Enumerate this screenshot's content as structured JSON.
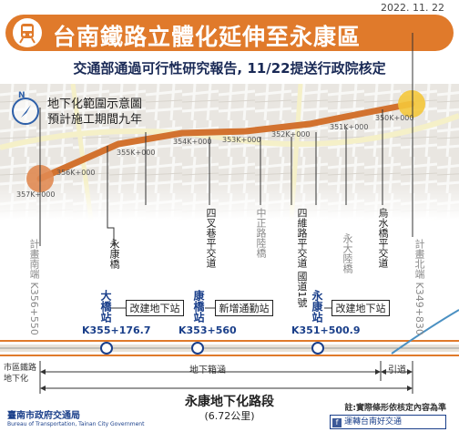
{
  "date": "2022. 11. 22",
  "header": {
    "title": "台南鐵路立體化延伸至永康區",
    "subtitle": "交通部通過可行性研究報告, 11/22提送行政院核定"
  },
  "map": {
    "legend_line1": "地下化範圍示意圖",
    "legend_line2": "預計施工期間九年",
    "map_labels": [
      "357K+000",
      "356K+000",
      "355K+000",
      "354K+000",
      "353K+000",
      "352K+000",
      "351K+000",
      "350K+000"
    ]
  },
  "points": {
    "left_end": "計畫南端 K356+550",
    "right_end": "計畫北端 K349+830",
    "yongkang_bridge": "永康橋",
    "sichagong": "四叉巷平交道",
    "zhongzheng": "中正路陸橋",
    "siwei": "四維路平交道 國道1號",
    "yongda": "永大陸橋",
    "wushuiqiao": "烏水橋平交道"
  },
  "stations": [
    {
      "name": "大橋站",
      "km": "K355+176.7",
      "action": "改建地下站"
    },
    {
      "name": "康橋站",
      "km": "K353+560",
      "action": "新增通勤站"
    },
    {
      "name": "永康站",
      "km": "K351+500.9",
      "action": "改建地下站"
    }
  ],
  "bottom": {
    "left_label": "市區鐵路地下化",
    "tunnel": "地下箱涵",
    "approach": "引道",
    "section_name": "永康地下化路段",
    "section_length": "(6.72公里)",
    "note": "註:實際條形依核定內容為準",
    "logo": "臺南市政府交通局",
    "logo_en": "Bureau of Transportation, Tainan City Government",
    "fb": "運轉台南好交通"
  },
  "colors": {
    "accent": "#e07a2b",
    "navy": "#1a3f8a",
    "route": "#d2722f"
  }
}
